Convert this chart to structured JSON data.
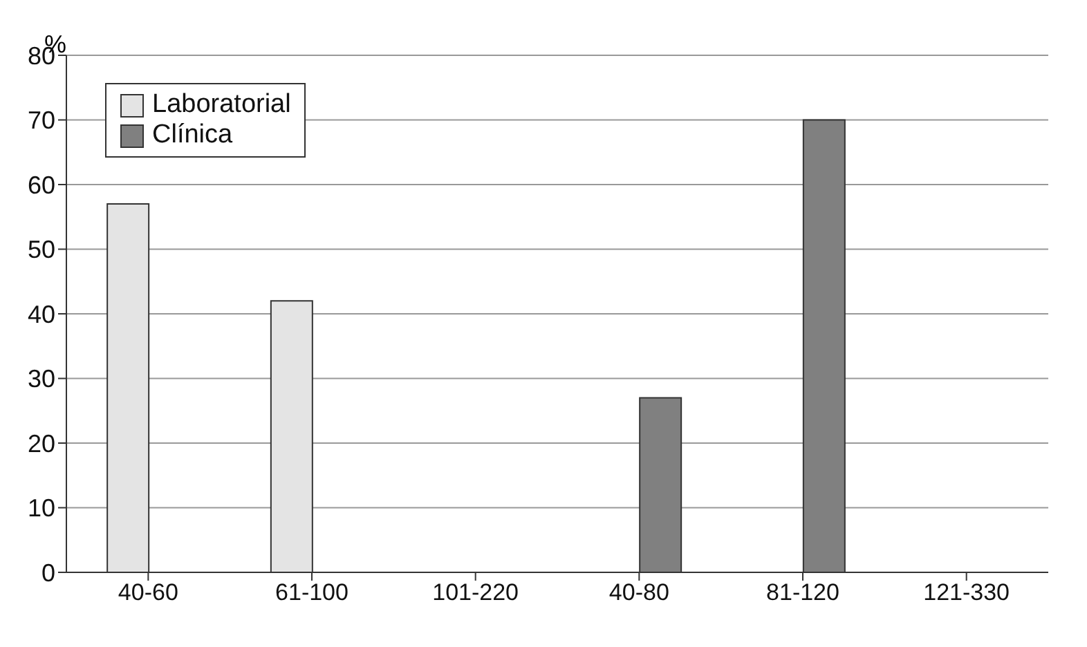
{
  "chart_data": {
    "type": "bar",
    "ylabel": "%",
    "categories": [
      "40-60",
      "61-100",
      "101-220",
      "40-80",
      "81-120",
      "121-330"
    ],
    "series": [
      {
        "name": "Laboratorial",
        "color": "#e4e4e4",
        "values": [
          57,
          42,
          0,
          null,
          null,
          null
        ]
      },
      {
        "name": "Clínica",
        "color": "#808080",
        "values": [
          null,
          null,
          null,
          27,
          70,
          0
        ]
      }
    ],
    "ylim": [
      0,
      80
    ],
    "yticks": [
      0,
      10,
      20,
      30,
      40,
      50,
      60,
      70,
      80
    ],
    "grid": "y",
    "legend": "top left"
  }
}
